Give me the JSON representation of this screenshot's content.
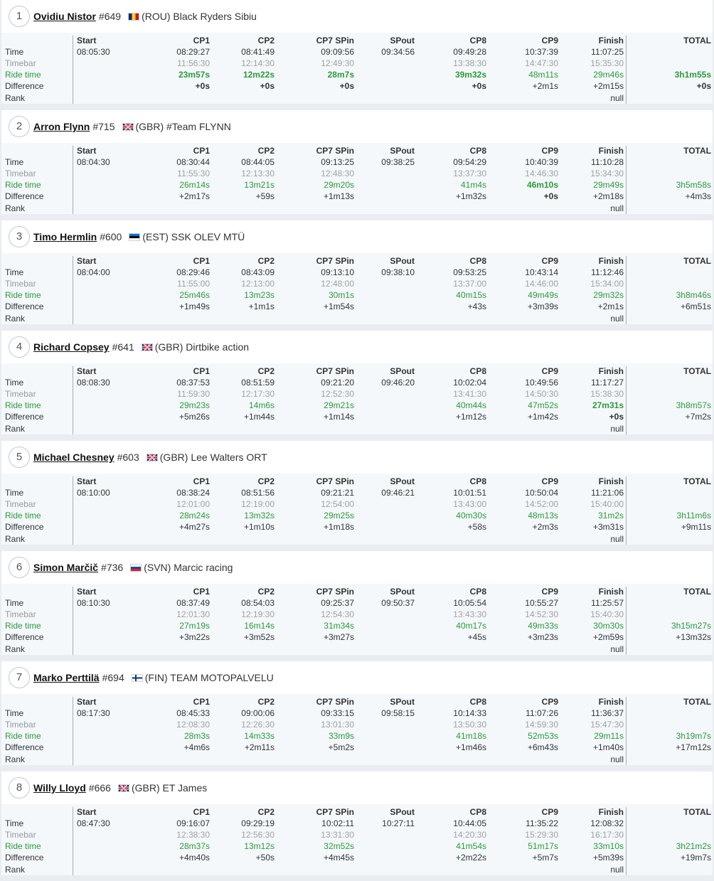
{
  "row_labels": {
    "time": "Time",
    "timebar": "Timebar",
    "ride_time": "Ride time",
    "difference": "Difference",
    "rank": "Rank"
  },
  "columns": [
    "Start",
    "CP1",
    "CP2",
    "CP7 SPin",
    "SPout",
    "CP8",
    "CP9",
    "Finish",
    "TOTAL"
  ],
  "colors": {
    "ride_time": "#2c9a3a",
    "timebar": "#a0a0a0",
    "panel": "#f4f8fb",
    "background": "#e9edf2"
  },
  "riders": [
    {
      "position": "1",
      "name": "Ovidiu Nistor",
      "number": "#649",
      "flag": "rou-flag-icon",
      "country": "(ROU)",
      "team": "Black Ryders Sibiu",
      "start": "08:05:30",
      "time": [
        "08:29:27",
        "08:41:49",
        "09:09:56",
        "09:34:56",
        "09:49:28",
        "10:37:39",
        "11:07:25",
        ""
      ],
      "timebar": [
        "11:56:30",
        "12:14:30",
        "12:49:30",
        "",
        "13:38:30",
        "14:47:30",
        "15:35:30",
        ""
      ],
      "ride": [
        "23m57s",
        "12m22s",
        "28m7s",
        "",
        "39m32s",
        "48m11s",
        "29m46s",
        "3h1m55s"
      ],
      "ride_best": [
        true,
        true,
        true,
        false,
        true,
        false,
        false,
        true
      ],
      "diff": [
        "+0s",
        "+0s",
        "+0s",
        "",
        "+0s",
        "+2m1s",
        "+2m15s",
        "+0s"
      ],
      "diff_best": [
        true,
        true,
        true,
        false,
        true,
        false,
        false,
        true
      ],
      "rank": "null"
    },
    {
      "position": "2",
      "name": "Arron Flynn",
      "number": "#715",
      "flag": "gbr-flag-icon",
      "country": "(GBR)",
      "team": "#Team FLYNN",
      "start": "08:04:30",
      "time": [
        "08:30:44",
        "08:44:05",
        "09:13:25",
        "09:38:25",
        "09:54:29",
        "10:40:39",
        "11:10:28",
        ""
      ],
      "timebar": [
        "11:55:30",
        "12:13:30",
        "12:48:30",
        "",
        "13:37:30",
        "14:46:30",
        "15:34:30",
        ""
      ],
      "ride": [
        "26m14s",
        "13m21s",
        "29m20s",
        "",
        "41m4s",
        "46m10s",
        "29m49s",
        "3h5m58s"
      ],
      "ride_best": [
        false,
        false,
        false,
        false,
        false,
        true,
        false,
        false
      ],
      "diff": [
        "+2m17s",
        "+59s",
        "+1m13s",
        "",
        "+1m32s",
        "+0s",
        "+2m18s",
        "+4m3s"
      ],
      "diff_best": [
        false,
        false,
        false,
        false,
        false,
        true,
        false,
        false
      ],
      "rank": "null"
    },
    {
      "position": "3",
      "name": "Timo Hermlin",
      "number": "#600",
      "flag": "est-flag-icon",
      "country": "(EST)",
      "team": "SSK OLEV MTÜ",
      "start": "08:04:00",
      "time": [
        "08:29:46",
        "08:43:09",
        "09:13:10",
        "09:38:10",
        "09:53:25",
        "10:43:14",
        "11:12:46",
        ""
      ],
      "timebar": [
        "11:55:00",
        "12:13:00",
        "12:48:00",
        "",
        "13:37:00",
        "14:46:00",
        "15:34:00",
        ""
      ],
      "ride": [
        "25m46s",
        "13m23s",
        "30m1s",
        "",
        "40m15s",
        "49m49s",
        "29m32s",
        "3h8m46s"
      ],
      "ride_best": [
        false,
        false,
        false,
        false,
        false,
        false,
        false,
        false
      ],
      "diff": [
        "+1m49s",
        "+1m1s",
        "+1m54s",
        "",
        "+43s",
        "+3m39s",
        "+2m1s",
        "+6m51s"
      ],
      "diff_best": [
        false,
        false,
        false,
        false,
        false,
        false,
        false,
        false
      ],
      "rank": "null"
    },
    {
      "position": "4",
      "name": "Richard Copsey",
      "number": "#641",
      "flag": "gbr-flag-icon",
      "country": "(GBR)",
      "team": "Dirtbike action",
      "start": "08:08:30",
      "time": [
        "08:37:53",
        "08:51:59",
        "09:21:20",
        "09:46:20",
        "10:02:04",
        "10:49:56",
        "11:17:27",
        ""
      ],
      "timebar": [
        "11:59:30",
        "12:17:30",
        "12:52:30",
        "",
        "13:41:30",
        "14:50:30",
        "15:38:30",
        ""
      ],
      "ride": [
        "29m23s",
        "14m6s",
        "29m21s",
        "",
        "40m44s",
        "47m52s",
        "27m31s",
        "3h8m57s"
      ],
      "ride_best": [
        false,
        false,
        false,
        false,
        false,
        false,
        true,
        false
      ],
      "diff": [
        "+5m26s",
        "+1m44s",
        "+1m14s",
        "",
        "+1m12s",
        "+1m42s",
        "+0s",
        "+7m2s"
      ],
      "diff_best": [
        false,
        false,
        false,
        false,
        false,
        false,
        true,
        false
      ],
      "rank": "null"
    },
    {
      "position": "5",
      "name": "Michael Chesney",
      "number": "#603",
      "flag": "gbr-flag-icon",
      "country": "(GBR)",
      "team": "Lee Walters ORT",
      "start": "08:10:00",
      "time": [
        "08:38:24",
        "08:51:56",
        "09:21:21",
        "09:46:21",
        "10:01:51",
        "10:50:04",
        "11:21:06",
        ""
      ],
      "timebar": [
        "12:01:00",
        "12:19:00",
        "12:54:00",
        "",
        "13:43:00",
        "14:52:00",
        "15:40:00",
        ""
      ],
      "ride": [
        "28m24s",
        "13m32s",
        "29m25s",
        "",
        "40m30s",
        "48m13s",
        "31m2s",
        "3h11m6s"
      ],
      "ride_best": [
        false,
        false,
        false,
        false,
        false,
        false,
        false,
        false
      ],
      "diff": [
        "+4m27s",
        "+1m10s",
        "+1m18s",
        "",
        "+58s",
        "+2m3s",
        "+3m31s",
        "+9m11s"
      ],
      "diff_best": [
        false,
        false,
        false,
        false,
        false,
        false,
        false,
        false
      ],
      "rank": "null"
    },
    {
      "position": "6",
      "name": "Simon Marčič",
      "number": "#736",
      "flag": "svn-flag-icon",
      "country": "(SVN)",
      "team": "Marcic racing",
      "start": "08:10:30",
      "time": [
        "08:37:49",
        "08:54:03",
        "09:25:37",
        "09:50:37",
        "10:05:54",
        "10:55:27",
        "11:25:57",
        ""
      ],
      "timebar": [
        "12:01:30",
        "12:19:30",
        "12:54:30",
        "",
        "13:43:30",
        "14:52:30",
        "15:40:30",
        ""
      ],
      "ride": [
        "27m19s",
        "16m14s",
        "31m34s",
        "",
        "40m17s",
        "49m33s",
        "30m30s",
        "3h15m27s"
      ],
      "ride_best": [
        false,
        false,
        false,
        false,
        false,
        false,
        false,
        false
      ],
      "diff": [
        "+3m22s",
        "+3m52s",
        "+3m27s",
        "",
        "+45s",
        "+3m23s",
        "+2m59s",
        "+13m32s"
      ],
      "diff_best": [
        false,
        false,
        false,
        false,
        false,
        false,
        false,
        false
      ],
      "rank": "null"
    },
    {
      "position": "7",
      "name": "Marko Perttilä",
      "number": "#694",
      "flag": "fin-flag-icon",
      "country": "(FIN)",
      "team": "TEAM MOTOPALVELU",
      "start": "08:17:30",
      "time": [
        "08:45:33",
        "09:00:06",
        "09:33:15",
        "09:58:15",
        "10:14:33",
        "11:07:26",
        "11:36:37",
        ""
      ],
      "timebar": [
        "12:08:30",
        "12:26:30",
        "13:01:30",
        "",
        "13:50:30",
        "14:59:30",
        "15:47:30",
        ""
      ],
      "ride": [
        "28m3s",
        "14m33s",
        "33m9s",
        "",
        "41m18s",
        "52m53s",
        "29m11s",
        "3h19m7s"
      ],
      "ride_best": [
        false,
        false,
        false,
        false,
        false,
        false,
        false,
        false
      ],
      "diff": [
        "+4m6s",
        "+2m11s",
        "+5m2s",
        "",
        "+1m46s",
        "+6m43s",
        "+1m40s",
        "+17m12s"
      ],
      "diff_best": [
        false,
        false,
        false,
        false,
        false,
        false,
        false,
        false
      ],
      "rank": "null"
    },
    {
      "position": "8",
      "name": "Willy Lloyd",
      "number": "#666",
      "flag": "gbr-flag-icon",
      "country": "(GBR)",
      "team": "ET James",
      "start": "08:47:30",
      "time": [
        "09:16:07",
        "09:29:19",
        "10:02:11",
        "10:27:11",
        "10:44:05",
        "11:35:22",
        "12:08:32",
        ""
      ],
      "timebar": [
        "12:38:30",
        "12:56:30",
        "13:31:30",
        "",
        "14:20:30",
        "15:29:30",
        "16:17:30",
        ""
      ],
      "ride": [
        "28m37s",
        "13m12s",
        "32m52s",
        "",
        "41m54s",
        "51m17s",
        "33m10s",
        "3h21m2s"
      ],
      "ride_best": [
        false,
        false,
        false,
        false,
        false,
        false,
        false,
        false
      ],
      "diff": [
        "+4m40s",
        "+50s",
        "+4m45s",
        "",
        "+2m22s",
        "+5m7s",
        "+5m39s",
        "+19m7s"
      ],
      "diff_best": [
        false,
        false,
        false,
        false,
        false,
        false,
        false,
        false
      ],
      "rank": "null"
    }
  ]
}
